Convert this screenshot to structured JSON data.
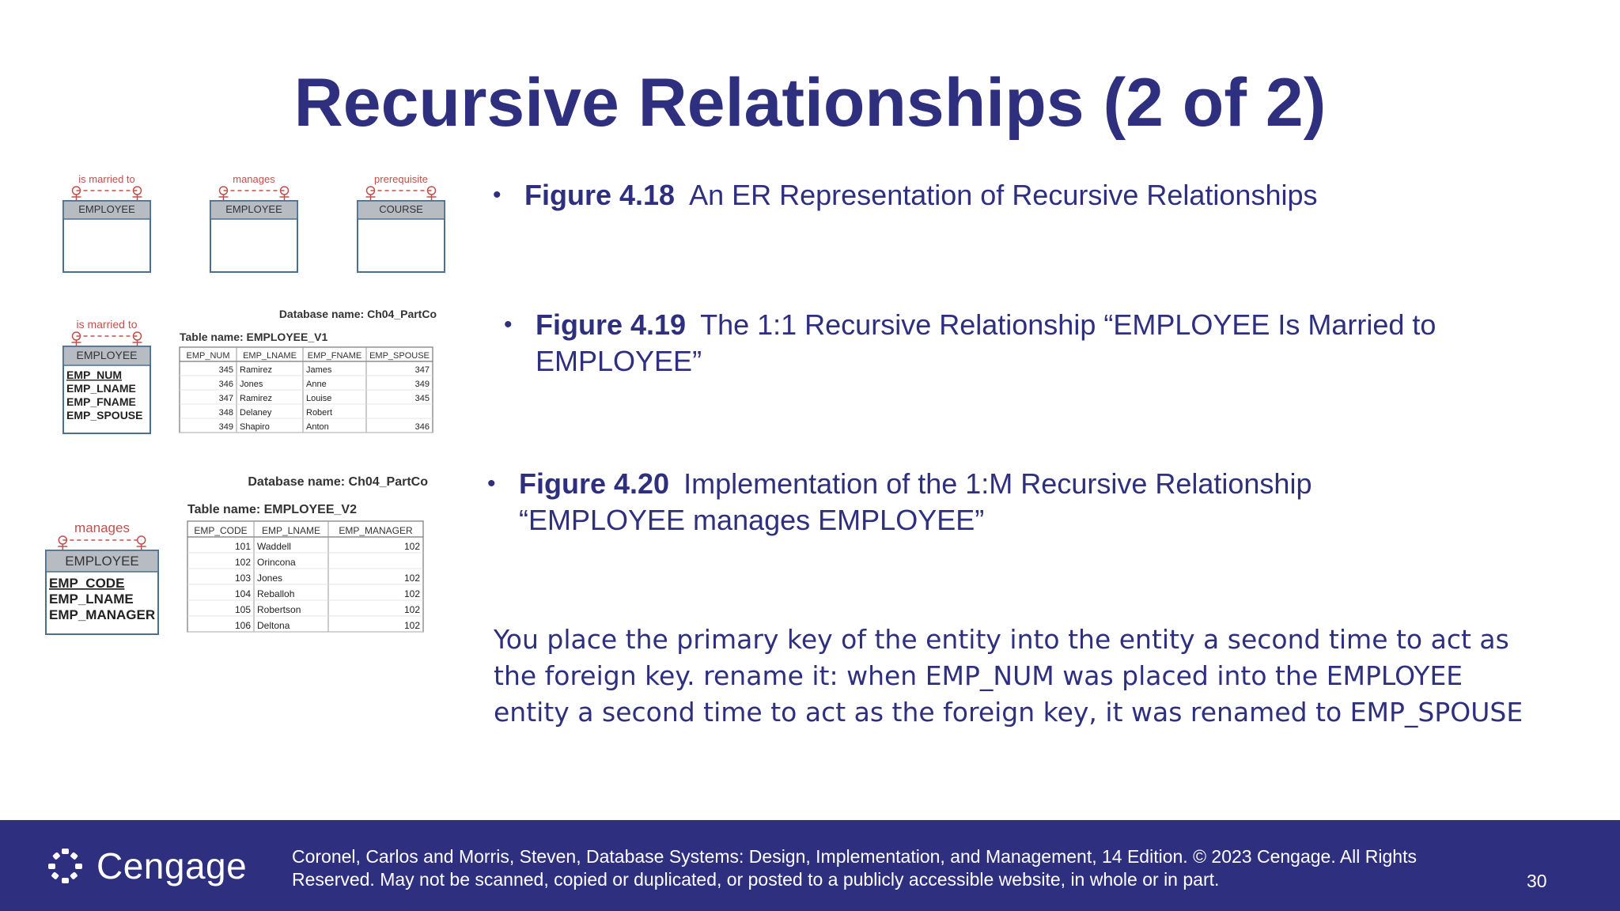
{
  "slide": {
    "title": "Recursive Relationships (2 of 2)",
    "bullets": [
      {
        "fig": "Figure 4.18",
        "text": "An ER Representation of Recursive Relationships"
      },
      {
        "fig": "Figure 4.19",
        "text": "The 1:1 Recursive Relationship “EMPLOYEE Is Married to EMPLOYEE”"
      },
      {
        "fig": "Figure 4.20",
        "text": "Implementation of the 1:M Recursive Relationship “EMPLOYEE manages EMPLOYEE”"
      }
    ],
    "note": "You place the primary key of the entity into the entity a second time to act as the foreign key. rename it: when EMP_NUM was placed into the EMPLOYEE entity a second time to act as the foreign key, it was renamed to EMP_SPOUSE",
    "page_number": "30"
  },
  "footer": {
    "logo_text": "Cengage",
    "citation": "Coronel, Carlos and Morris, Steven, Database Systems: Design, Implementation, and Management, 14 Edition. © 2023 Cengage. All Rights Reserved. May not be scanned, copied or duplicated, or posted to a publicly accessible website, in whole or in part."
  },
  "fig418": {
    "entities": [
      {
        "relationship": "is married to",
        "entity": "EMPLOYEE"
      },
      {
        "relationship": "manages",
        "entity": "EMPLOYEE"
      },
      {
        "relationship": "prerequisite",
        "entity": "COURSE"
      }
    ]
  },
  "fig419": {
    "relationship": "is married to",
    "entity": "EMPLOYEE",
    "attributes": [
      "EMP_NUM",
      "EMP_LNAME",
      "EMP_FNAME",
      "EMP_SPOUSE"
    ],
    "database_name": "Database name: Ch04_PartCo",
    "table_name": "Table name: EMPLOYEE_V1",
    "columns": [
      "EMP_NUM",
      "EMP_LNAME",
      "EMP_FNAME",
      "EMP_SPOUSE"
    ],
    "rows": [
      [
        "345",
        "Ramirez",
        "James",
        "347"
      ],
      [
        "346",
        "Jones",
        "Anne",
        "349"
      ],
      [
        "347",
        "Ramirez",
        "Louise",
        "345"
      ],
      [
        "348",
        "Delaney",
        "Robert",
        ""
      ],
      [
        "349",
        "Shapiro",
        "Anton",
        "346"
      ]
    ]
  },
  "fig420": {
    "relationship": "manages",
    "entity": "EMPLOYEE",
    "attributes": [
      "EMP_CODE",
      "EMP_LNAME",
      "EMP_MANAGER"
    ],
    "database_name": "Database name: Ch04_PartCo",
    "table_name": "Table name: EMPLOYEE_V2",
    "columns": [
      "EMP_CODE",
      "EMP_LNAME",
      "EMP_MANAGER"
    ],
    "rows": [
      [
        "101",
        "Waddell",
        "102"
      ],
      [
        "102",
        "Orincona",
        ""
      ],
      [
        "103",
        "Jones",
        "102"
      ],
      [
        "104",
        "Reballoh",
        "102"
      ],
      [
        "105",
        "Robertson",
        "102"
      ],
      [
        "106",
        "Deltona",
        "102"
      ]
    ]
  },
  "colors": {
    "title": "#2e2f7e",
    "footer": "#2e2f7e",
    "entity_header": "#b7bcc3",
    "entity_border": "#4a6f8f",
    "relationship_line": "#c0504d"
  }
}
